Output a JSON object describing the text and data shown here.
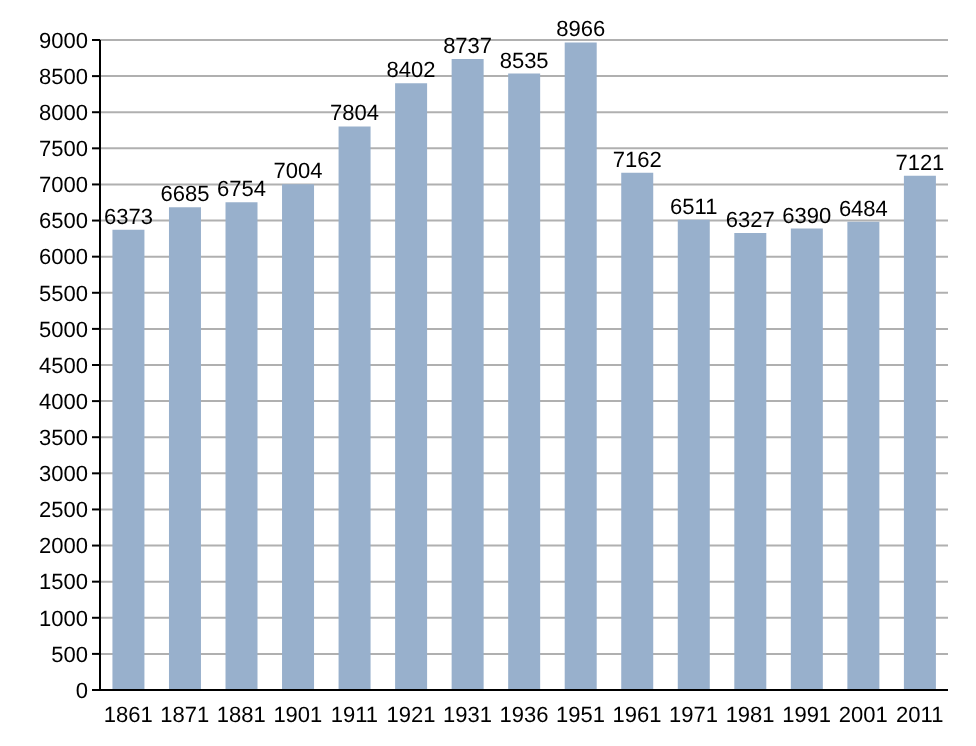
{
  "chart_data": {
    "type": "bar",
    "categories": [
      "1861",
      "1871",
      "1881",
      "1901",
      "1911",
      "1921",
      "1931",
      "1936",
      "1951",
      "1961",
      "1971",
      "1981",
      "1991",
      "2001",
      "2011"
    ],
    "values": [
      6373,
      6685,
      6754,
      7004,
      7804,
      8402,
      8737,
      8535,
      8966,
      7162,
      6511,
      6327,
      6390,
      6484,
      7121
    ],
    "color": "#98b0cc",
    "ylim": [
      0,
      9000
    ],
    "yticks": [
      0,
      500,
      1000,
      1500,
      2000,
      2500,
      3000,
      3500,
      4000,
      4500,
      5000,
      5500,
      6000,
      6500,
      7000,
      7500,
      8000,
      8500,
      9000
    ],
    "grid": "y",
    "data_labels": true
  }
}
